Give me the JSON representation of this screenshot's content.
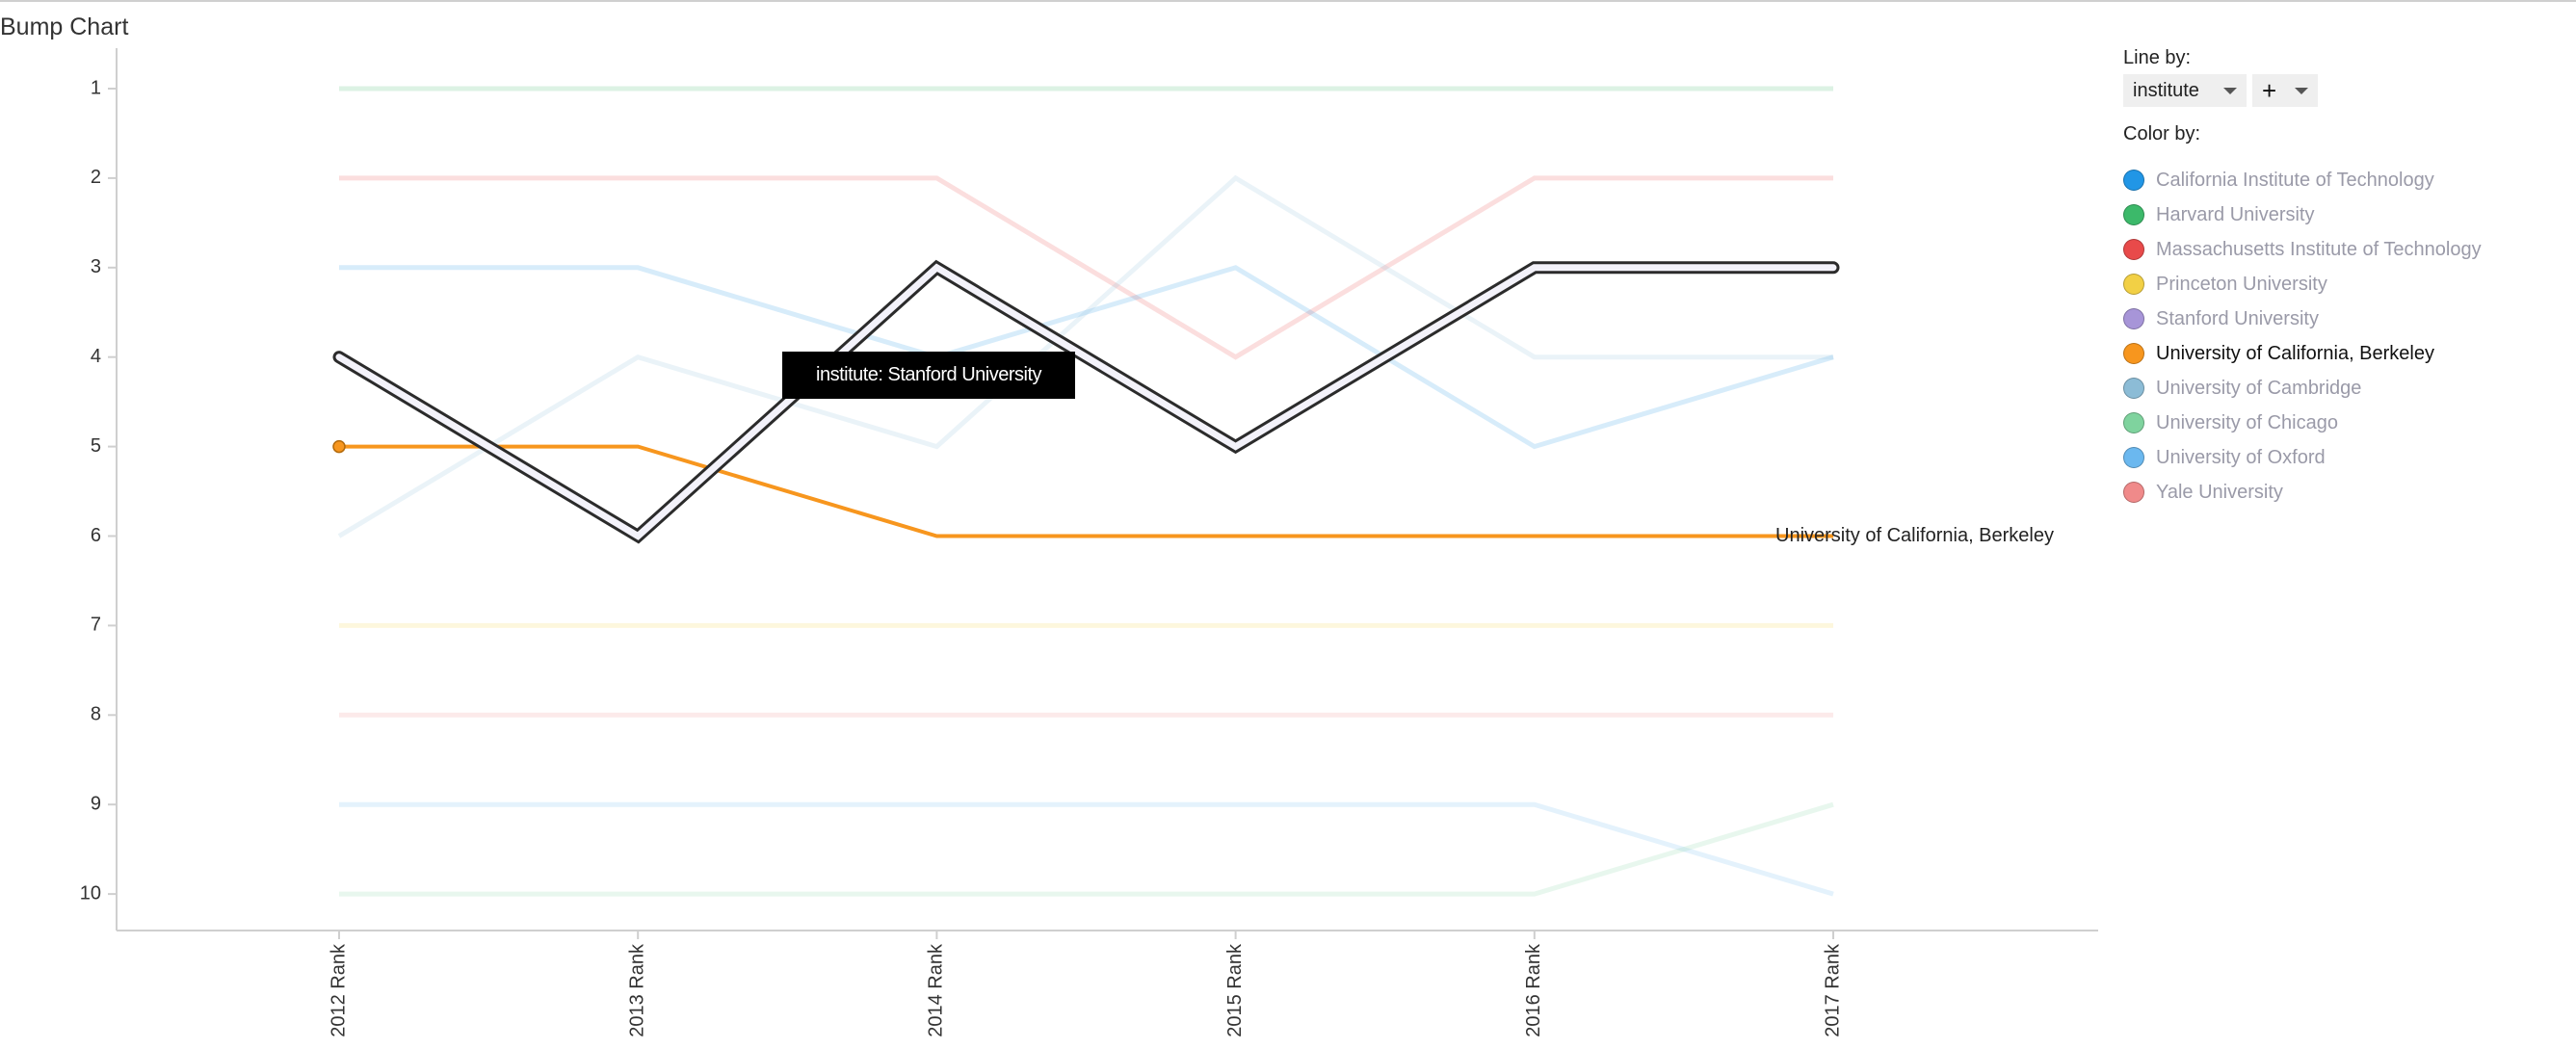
{
  "title": "Bump Chart",
  "tooltip": {
    "text": "institute: Stanford University"
  },
  "panel": {
    "line_by_label": "Line by:",
    "line_by_value": "institute",
    "add_button_label": "+",
    "color_by_label": "Color by:"
  },
  "legend": [
    {
      "label": "California Institute of Technology",
      "color": "#2196e6",
      "active": false
    },
    {
      "label": "Harvard University",
      "color": "#3cb96a",
      "active": false
    },
    {
      "label": "Massachusetts Institute of Technology",
      "color": "#e84a4a",
      "active": false
    },
    {
      "label": "Princeton University",
      "color": "#f2d045",
      "active": false
    },
    {
      "label": "Stanford University",
      "color": "#a795d8",
      "active": false
    },
    {
      "label": "University of California, Berkeley",
      "color": "#f7961e",
      "active": true
    },
    {
      "label": "University of Cambridge",
      "color": "#8cbcd6",
      "active": false
    },
    {
      "label": "University of Chicago",
      "color": "#7fd39e",
      "active": false
    },
    {
      "label": "University of Oxford",
      "color": "#6bb8ef",
      "active": false
    },
    {
      "label": "Yale University",
      "color": "#f08a8a",
      "active": false
    }
  ],
  "end_label": "University of California, Berkeley",
  "chart_data": {
    "type": "line",
    "subtype": "bump",
    "title": "Bump Chart",
    "categories": [
      "2012 Rank",
      "2013 Rank",
      "2014 Rank",
      "2015 Rank",
      "2016 Rank",
      "2017 Rank"
    ],
    "xlabel": "",
    "ylabel": "",
    "yticks": [
      1,
      2,
      3,
      4,
      5,
      6,
      7,
      8,
      9,
      10
    ],
    "ylim": [
      10,
      1
    ],
    "y_inverted": true,
    "grid": false,
    "legend_position": "right",
    "highlighted_series": "Stanford University",
    "selected_series": "University of California, Berkeley",
    "series": [
      {
        "name": "Harvard University",
        "values": [
          1,
          1,
          1,
          1,
          1,
          1
        ]
      },
      {
        "name": "Massachusetts Institute of Technology",
        "values": [
          2,
          2,
          2,
          4,
          2,
          2
        ]
      },
      {
        "name": "California Institute of Technology",
        "values": [
          3,
          3,
          4,
          3,
          5,
          4
        ]
      },
      {
        "name": "Stanford University",
        "values": [
          4,
          6,
          3,
          5,
          3,
          3
        ]
      },
      {
        "name": "University of California, Berkeley",
        "values": [
          5,
          5,
          6,
          6,
          6,
          6
        ]
      },
      {
        "name": "University of Cambridge",
        "values": [
          6,
          4,
          5,
          2,
          4,
          4
        ]
      },
      {
        "name": "Princeton University",
        "values": [
          7,
          7,
          7,
          7,
          7,
          7
        ]
      },
      {
        "name": "Yale University",
        "values": [
          8,
          8,
          8,
          8,
          8,
          8
        ]
      },
      {
        "name": "University of Oxford",
        "values": [
          9,
          9,
          9,
          9,
          9,
          10
        ]
      },
      {
        "name": "University of Chicago",
        "values": [
          10,
          10,
          10,
          10,
          10,
          9
        ]
      }
    ]
  }
}
